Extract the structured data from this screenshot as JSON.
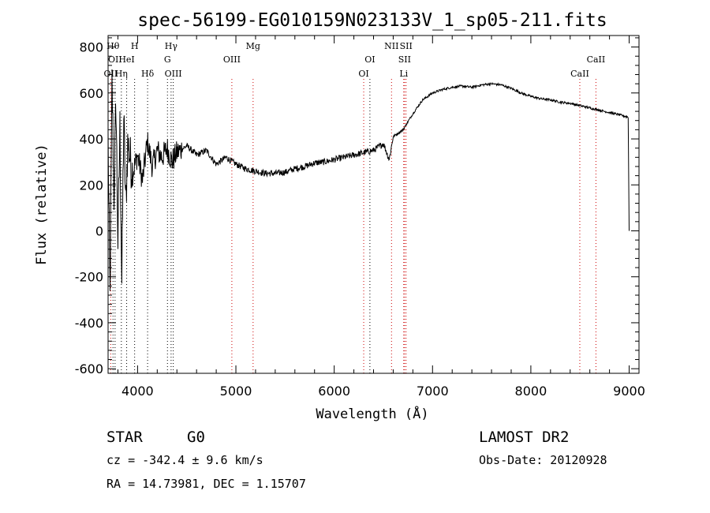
{
  "chart_data": {
    "type": "line",
    "title": "spec-56199-EG010159N023133V_1_sp05-211.fits",
    "xlabel": "Wavelength (Å)",
    "ylabel": "Flux (relative)",
    "xlim": [
      3700,
      9100
    ],
    "ylim": [
      -620,
      850
    ],
    "xticks": [
      4000,
      5000,
      6000,
      7000,
      8000,
      9000
    ],
    "yticks": [
      -600,
      -400,
      -200,
      0,
      200,
      400,
      600,
      800
    ],
    "grid": false,
    "legend": "none",
    "series": [
      {
        "x": [
          3700,
          3720,
          3740,
          3760,
          3780,
          3800,
          3820,
          3840,
          3860,
          3880,
          3900,
          3950,
          4000,
          4050,
          4100,
          4150,
          4200,
          4250,
          4300,
          4350,
          4400,
          4500,
          4600,
          4700,
          4800,
          4900,
          5000,
          5100,
          5200,
          5300,
          5400,
          5500,
          5600,
          5700,
          5800,
          5900,
          6000,
          6100,
          6200,
          6300,
          6400,
          6500,
          6560,
          6600,
          6700,
          6800,
          6900,
          7000,
          7100,
          7200,
          7300,
          7400,
          7500,
          7600,
          7700,
          7800,
          7900,
          8000,
          8100,
          8200,
          8300,
          8400,
          8500,
          8600,
          8700,
          8800,
          8900,
          8990,
          9000
        ],
        "y": [
          400,
          -300,
          650,
          150,
          560,
          -50,
          450,
          -230,
          500,
          100,
          380,
          250,
          330,
          220,
          390,
          280,
          350,
          320,
          360,
          300,
          340,
          370,
          330,
          350,
          290,
          320,
          290,
          270,
          260,
          250,
          250,
          255,
          270,
          280,
          295,
          300,
          310,
          320,
          330,
          340,
          350,
          380,
          310,
          410,
          440,
          510,
          570,
          600,
          615,
          625,
          630,
          625,
          635,
          640,
          635,
          620,
          600,
          585,
          575,
          570,
          560,
          555,
          545,
          535,
          525,
          515,
          505,
          495,
          0
        ]
      }
    ],
    "lines": [
      {
        "wl": 3727,
        "label": "OII",
        "color": "#cc0000",
        "row": 2
      },
      {
        "wl": 3750,
        "label": "Hθ",
        "color": "#000000",
        "row": 0
      },
      {
        "wl": 3771,
        "label": "OII",
        "color": "#000000",
        "row": 1
      },
      {
        "wl": 3835,
        "label": "Hη",
        "color": "#000000",
        "row": 2
      },
      {
        "wl": 3889,
        "label": "HeI",
        "color": "#000000",
        "row": 1
      },
      {
        "wl": 3970,
        "label": "H",
        "color": "#000000",
        "row": 0
      },
      {
        "wl": 4102,
        "label": "Hδ",
        "color": "#000000",
        "row": 2
      },
      {
        "wl": 4304,
        "label": "G",
        "color": "#000000",
        "row": 1
      },
      {
        "wl": 4341,
        "label": "Hγ",
        "color": "#000000",
        "row": 0
      },
      {
        "wl": 4363,
        "label": "OIII",
        "color": "#000000",
        "row": 2
      },
      {
        "wl": 4959,
        "label": "OIII",
        "color": "#cc0000",
        "row": 1
      },
      {
        "wl": 5175,
        "label": "Mg",
        "color": "#cc0000",
        "row": 0
      },
      {
        "wl": 6300,
        "label": "OI",
        "color": "#cc0000",
        "row": 2
      },
      {
        "wl": 6363,
        "label": "OI",
        "color": "#000000",
        "row": 1
      },
      {
        "wl": 6583,
        "label": "NII",
        "color": "#cc0000",
        "row": 0
      },
      {
        "wl": 6707,
        "label": "Li",
        "color": "#cc0000",
        "row": 2
      },
      {
        "wl": 6716,
        "label": "SII",
        "color": "#cc0000",
        "row": 1
      },
      {
        "wl": 6731,
        "label": "SII",
        "color": "#cc0000",
        "row": 0
      },
      {
        "wl": 8498,
        "label": "CaII",
        "color": "#cc0000",
        "row": 2
      },
      {
        "wl": 8662,
        "label": "CaII",
        "color": "#cc0000",
        "row": 1
      }
    ]
  },
  "info": {
    "class": "STAR",
    "subclass": "G0",
    "survey": "LAMOST DR2",
    "cz": "cz = -342.4 ± 9.6 km/s",
    "obs_date": "Obs-Date: 20120928",
    "radec": "RA =  14.73981, DEC =    1.15707"
  }
}
